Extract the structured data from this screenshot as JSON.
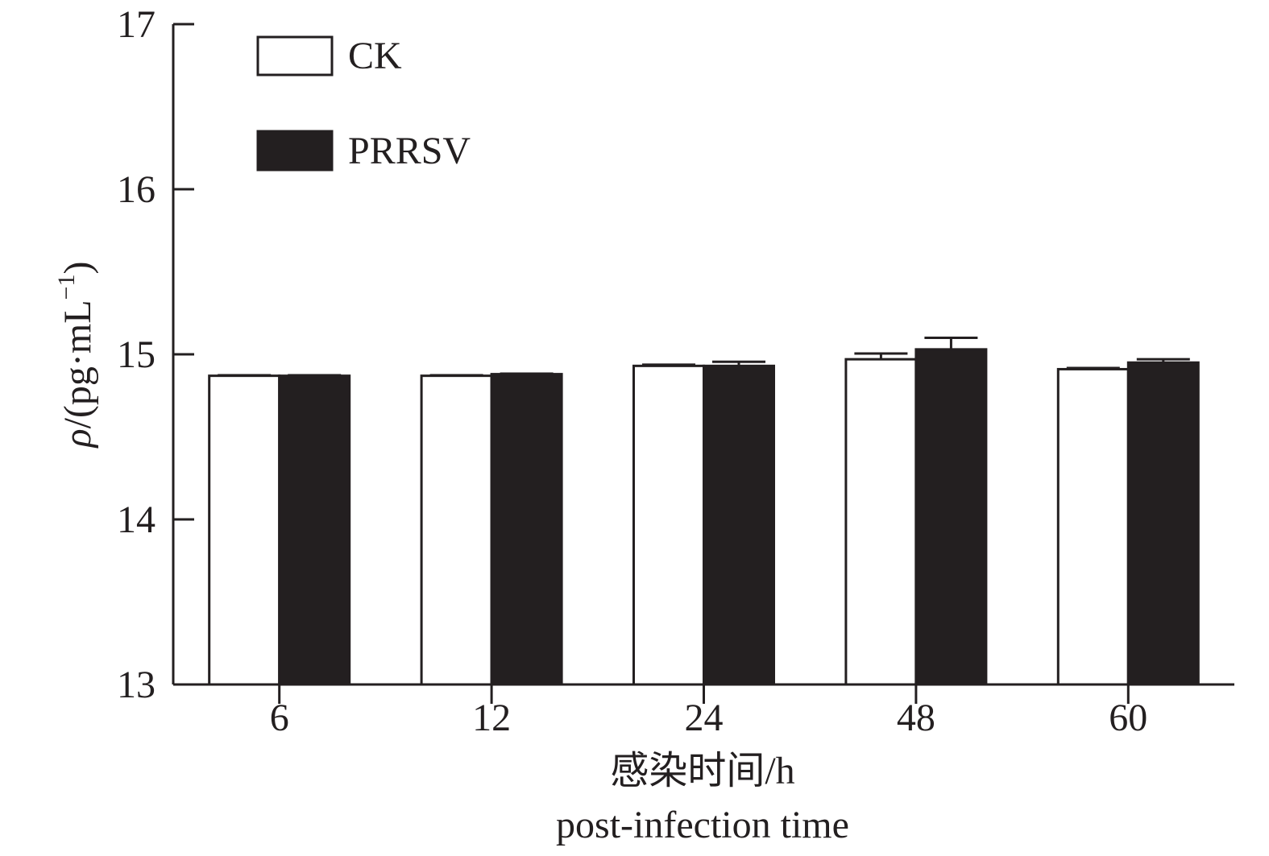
{
  "chart_data": {
    "type": "bar",
    "categories": [
      "6",
      "12",
      "24",
      "48",
      "60"
    ],
    "series": [
      {
        "name": "CK",
        "values": [
          14.87,
          14.87,
          14.93,
          14.97,
          14.91
        ],
        "errors": [
          0.003,
          0.003,
          0.007,
          0.035,
          0.007
        ],
        "color": "#ffffff"
      },
      {
        "name": "PRRSV",
        "values": [
          14.87,
          14.88,
          14.93,
          15.03,
          14.95
        ],
        "errors": [
          0.003,
          0.003,
          0.025,
          0.07,
          0.02
        ],
        "color": "#231f20"
      }
    ],
    "ylim": [
      13,
      17
    ],
    "yticks": [
      "13",
      "14",
      "15",
      "16",
      "17"
    ],
    "ylabel_symbol": "ρ",
    "ylabel_unit": "/(pg·mL",
    "ylabel_exp": "−1",
    "ylabel_close": ")",
    "xlabel_cn": "感染时间/h",
    "xlabel_en": "post-infection time",
    "legend_position": "top-left",
    "grid": false
  }
}
